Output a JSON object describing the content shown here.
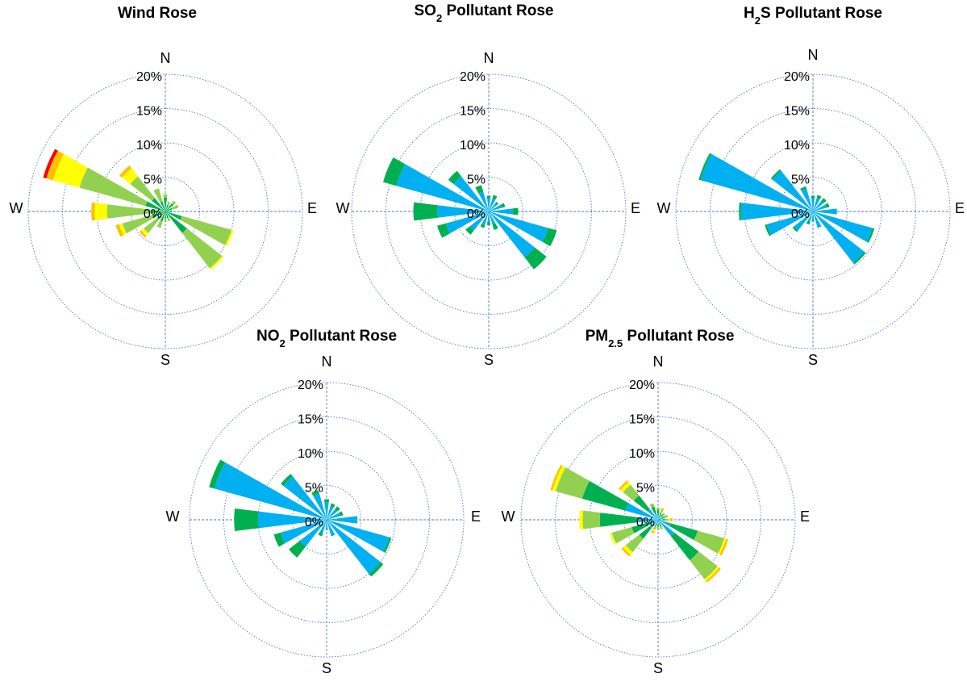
{
  "chart_data": [
    {
      "type": "polar-bar",
      "title": "Wind Rose",
      "title_parts": [
        {
          "t": "Wind Rose"
        }
      ],
      "cardinals": [
        "N",
        "E",
        "S",
        "W"
      ],
      "radial_ticks": [
        "0%",
        "5%",
        "10%",
        "15%",
        "20%"
      ],
      "rmax": 20,
      "colors": [
        "#00b050",
        "#92d050",
        "#ffff00",
        "#ffc000",
        "#ff0000"
      ],
      "directions": [
        0,
        22.5,
        45,
        67.5,
        90,
        112.5,
        135,
        157.5,
        180,
        202.5,
        225,
        247.5,
        270,
        292.5,
        315,
        337.5
      ],
      "bins": [
        [
          2.0,
          0.5,
          0,
          0,
          0
        ],
        [
          1.0,
          0.5,
          0,
          0,
          0
        ],
        [
          1.5,
          0.5,
          0,
          0,
          0
        ],
        [
          1.0,
          1.0,
          0,
          0,
          0
        ],
        [
          1.0,
          0,
          0,
          0,
          0
        ],
        [
          2.5,
          7.5,
          0.3,
          0,
          0
        ],
        [
          4.0,
          6.5,
          0.3,
          0,
          0
        ],
        [
          1.0,
          0.5,
          0,
          0,
          0
        ],
        [
          1.0,
          0.5,
          0,
          0,
          0
        ],
        [
          1.5,
          1.0,
          0,
          0,
          0
        ],
        [
          1.5,
          2.5,
          0.5,
          0.3,
          0
        ],
        [
          2.0,
          4.5,
          0.5,
          0.5,
          0
        ],
        [
          2.0,
          6.5,
          1.8,
          0.5,
          0
        ],
        [
          3.0,
          10.0,
          4.0,
          1.0,
          0.5
        ],
        [
          2.5,
          4.0,
          1.5,
          0.5,
          0
        ],
        [
          1.5,
          2.0,
          0,
          0,
          0
        ]
      ]
    },
    {
      "type": "polar-bar",
      "title": "SO2 Pollutant Rose",
      "title_parts": [
        {
          "t": "SO"
        },
        {
          "t": "2",
          "sub": true
        },
        {
          "t": "  Pollutant Rose"
        }
      ],
      "cardinals": [
        "N",
        "E",
        "S",
        "W"
      ],
      "radial_ticks": [
        "0%",
        "5%",
        "10%",
        "15%",
        "20%"
      ],
      "rmax": 20,
      "colors": [
        "#00b0f0",
        "#00b050",
        "#92d050"
      ],
      "directions": [
        0,
        22.5,
        45,
        67.5,
        90,
        112.5,
        135,
        157.5,
        180,
        202.5,
        225,
        247.5,
        270,
        292.5,
        315,
        337.5
      ],
      "bins": [
        [
          2.0,
          0.3,
          0
        ],
        [
          2.0,
          0.5,
          0
        ],
        [
          1.5,
          0.3,
          0
        ],
        [
          2.0,
          0.5,
          0
        ],
        [
          3.5,
          0.8,
          0
        ],
        [
          9.0,
          1.3,
          0
        ],
        [
          8.5,
          2.2,
          0
        ],
        [
          2.0,
          0.8,
          0
        ],
        [
          1.5,
          0.5,
          0
        ],
        [
          2.0,
          0.5,
          0
        ],
        [
          3.5,
          0.8,
          0
        ],
        [
          6.5,
          1.3,
          0
        ],
        [
          7.5,
          3.5,
          0
        ],
        [
          14.0,
          2.0,
          0
        ],
        [
          6.5,
          1.0,
          0
        ],
        [
          3.0,
          1.0,
          0
        ]
      ]
    },
    {
      "type": "polar-bar",
      "title": "H2S Pollutant Rose",
      "title_parts": [
        {
          "t": "H"
        },
        {
          "t": "2",
          "sub": true
        },
        {
          "t": "S Pollutant Rose"
        }
      ],
      "cardinals": [
        "N",
        "E",
        "S",
        "W"
      ],
      "radial_ticks": [
        "0%",
        "5%",
        "10%",
        "15%",
        "20%"
      ],
      "rmax": 20,
      "colors": [
        "#00b0f0",
        "#00b050",
        "#92d050"
      ],
      "directions": [
        0,
        22.5,
        45,
        67.5,
        90,
        112.5,
        135,
        157.5,
        180,
        202.5,
        225,
        247.5,
        270,
        292.5,
        315,
        337.5
      ],
      "bins": [
        [
          2.0,
          0.3,
          0
        ],
        [
          2.0,
          0.5,
          0
        ],
        [
          2.0,
          0.5,
          0
        ],
        [
          2.0,
          0.5,
          0
        ],
        [
          3.5,
          0,
          0
        ],
        [
          9.0,
          0.3,
          0
        ],
        [
          9.5,
          0.3,
          0
        ],
        [
          2.5,
          0,
          0
        ],
        [
          1.5,
          0,
          0
        ],
        [
          1.5,
          0.5,
          0
        ],
        [
          3.5,
          0.3,
          0
        ],
        [
          7.0,
          0.3,
          0
        ],
        [
          10.5,
          0.3,
          0
        ],
        [
          17.0,
          0.3,
          0
        ],
        [
          7.5,
          0.3,
          0
        ],
        [
          3.5,
          0.3,
          0
        ]
      ]
    },
    {
      "type": "polar-bar",
      "title": "NO2 Pollutant Rose",
      "title_parts": [
        {
          "t": "NO"
        },
        {
          "t": "2",
          "sub": true
        },
        {
          "t": " Pollutant Rose"
        }
      ],
      "cardinals": [
        "N",
        "E",
        "S",
        "W"
      ],
      "radial_ticks": [
        "0%",
        "5%",
        "10%",
        "15%",
        "20%"
      ],
      "rmax": 20,
      "colors": [
        "#00b0f0",
        "#00b050",
        "#92d050"
      ],
      "directions": [
        0,
        22.5,
        45,
        67.5,
        90,
        112.5,
        135,
        157.5,
        180,
        202.5,
        225,
        247.5,
        270,
        292.5,
        315,
        337.5
      ],
      "bins": [
        [
          2.5,
          0.5,
          0
        ],
        [
          2.0,
          0.5,
          0
        ],
        [
          2.0,
          0.5,
          0
        ],
        [
          2.0,
          0.5,
          0
        ],
        [
          4.5,
          0,
          0
        ],
        [
          9.5,
          0.3,
          0
        ],
        [
          10.0,
          0.5,
          0
        ],
        [
          2.5,
          0,
          0
        ],
        [
          1.5,
          0,
          0
        ],
        [
          2.0,
          0.5,
          0
        ],
        [
          5.0,
          2.0,
          0
        ],
        [
          7.0,
          1.0,
          0
        ],
        [
          10.0,
          3.5,
          0
        ],
        [
          17.0,
          0.8,
          0
        ],
        [
          8.0,
          0.5,
          0
        ],
        [
          4.0,
          0.5,
          0
        ]
      ]
    },
    {
      "type": "polar-bar",
      "title": "PM2.5 Pollutant Rose",
      "title_parts": [
        {
          "t": "PM"
        },
        {
          "t": "2.5",
          "sub": true
        },
        {
          "t": " Pollutant Rose"
        }
      ],
      "cardinals": [
        "N",
        "E",
        "S",
        "W"
      ],
      "radial_ticks": [
        "0%",
        "5%",
        "10%",
        "15%",
        "20%"
      ],
      "rmax": 20,
      "colors": [
        "#00b0f0",
        "#00b050",
        "#92d050",
        "#ffff00",
        "#ffc000"
      ],
      "directions": [
        0,
        22.5,
        45,
        67.5,
        90,
        112.5,
        135,
        157.5,
        180,
        202.5,
        225,
        247.5,
        270,
        292.5,
        315,
        337.5
      ],
      "bins": [
        [
          0.5,
          1.0,
          0.3,
          0,
          0
        ],
        [
          0.5,
          0.5,
          0.5,
          0,
          0.3
        ],
        [
          0.5,
          0.5,
          0.3,
          0,
          0
        ],
        [
          0.5,
          0.5,
          0.5,
          0,
          0
        ],
        [
          0.5,
          0.5,
          0.5,
          0.3,
          0.3
        ],
        [
          2.0,
          4.0,
          4.0,
          0.3,
          0.3
        ],
        [
          3.0,
          4.5,
          3.5,
          0.3,
          0.3
        ],
        [
          0.5,
          0.5,
          0.5,
          0,
          0
        ],
        [
          0.5,
          0.5,
          0.5,
          0,
          0
        ],
        [
          0.5,
          0.5,
          0.5,
          0.3,
          0.3
        ],
        [
          1.5,
          2.0,
          2.5,
          0.5,
          0.3
        ],
        [
          1.0,
          3.0,
          3.0,
          0.3,
          0
        ],
        [
          3.0,
          5.5,
          2.5,
          0.5,
          0
        ],
        [
          5.0,
          6.5,
          4.0,
          0.5,
          0.3
        ],
        [
          2.0,
          2.5,
          2.0,
          0.5,
          0.3
        ],
        [
          1.0,
          1.0,
          0.5,
          0,
          0
        ]
      ]
    }
  ]
}
